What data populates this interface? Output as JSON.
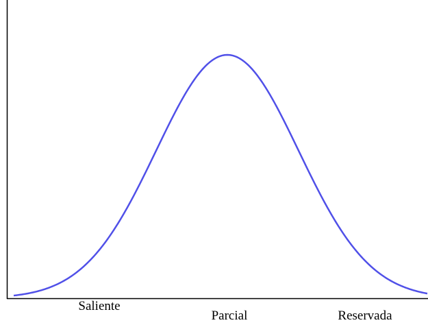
{
  "labels": [
    "Saliente",
    "Parcial",
    "Reservada"
  ]
}
